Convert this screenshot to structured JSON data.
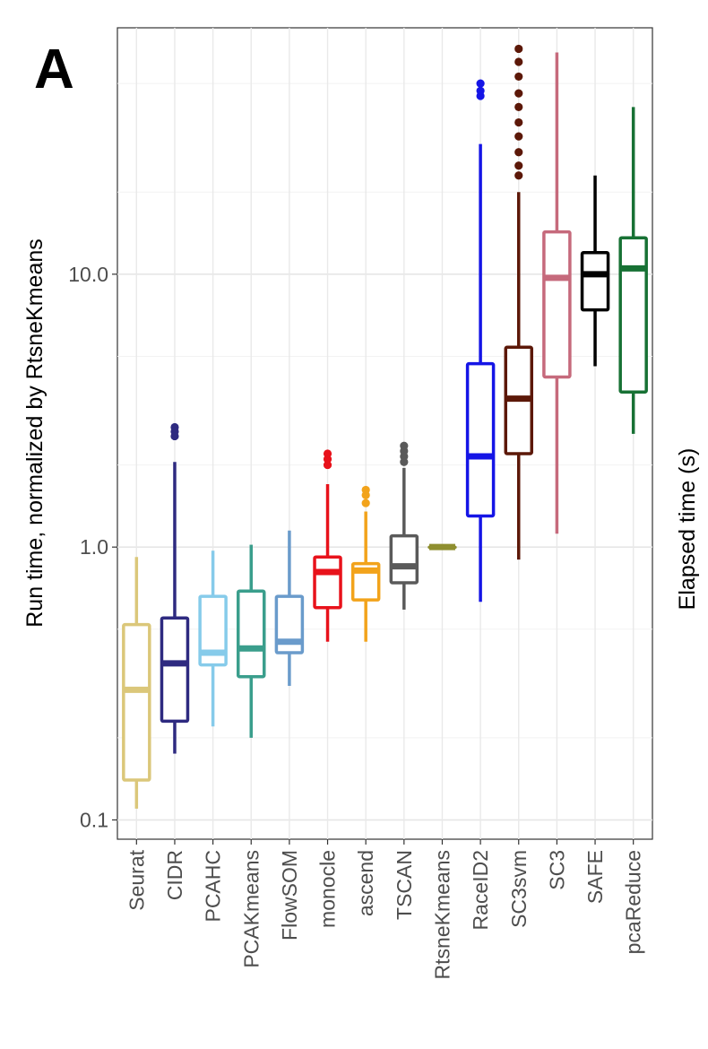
{
  "panel_label": "A",
  "chart_data": {
    "type": "box",
    "title": "",
    "ylabel": "Run time, normalized by RtsneKmeans",
    "ylabel_right": "Elapsed time (s)",
    "xlabel": "",
    "yscale": "log10",
    "ylim": [
      0.085,
      80
    ],
    "yticks": [
      0.1,
      1.0,
      10.0
    ],
    "ytick_labels": [
      "0.1",
      "1.0",
      "10.0"
    ],
    "grid": true,
    "legend": "none",
    "categories": [
      "Seurat",
      "CIDR",
      "PCAHC",
      "PCAKmeans",
      "FlowSOM",
      "monocle",
      "ascend",
      "TSCAN",
      "RtsneKmeans",
      "RaceID2",
      "SC3svm",
      "SC3",
      "SAFE",
      "pcaReduce"
    ],
    "colors": [
      "#dbc77a",
      "#2e2a80",
      "#86cbea",
      "#3a9e8c",
      "#6a9bcb",
      "#e8121b",
      "#f2a31b",
      "#5a5a5a",
      "#8f8f30",
      "#1515e6",
      "#5c1808",
      "#c66a7c",
      "#000000",
      "#177134"
    ],
    "boxes": [
      {
        "min": 0.11,
        "q1": 0.14,
        "median": 0.3,
        "q3": 0.52,
        "max": 0.92,
        "outliers": []
      },
      {
        "min": 0.175,
        "q1": 0.23,
        "median": 0.375,
        "q3": 0.55,
        "max": 2.05,
        "outliers": [
          2.55,
          2.65,
          2.75
        ]
      },
      {
        "min": 0.22,
        "q1": 0.37,
        "median": 0.41,
        "q3": 0.66,
        "max": 0.97,
        "outliers": []
      },
      {
        "min": 0.2,
        "q1": 0.335,
        "median": 0.425,
        "q3": 0.69,
        "max": 1.02,
        "outliers": []
      },
      {
        "min": 0.31,
        "q1": 0.41,
        "median": 0.45,
        "q3": 0.66,
        "max": 1.15,
        "outliers": []
      },
      {
        "min": 0.45,
        "q1": 0.6,
        "median": 0.81,
        "q3": 0.92,
        "max": 1.7,
        "outliers": [
          2.0,
          2.1,
          2.2
        ]
      },
      {
        "min": 0.45,
        "q1": 0.64,
        "median": 0.82,
        "q3": 0.87,
        "max": 1.35,
        "outliers": [
          1.45,
          1.55,
          1.62
        ]
      },
      {
        "min": 0.59,
        "q1": 0.74,
        "median": 0.85,
        "q3": 1.1,
        "max": 1.95,
        "outliers": [
          2.05,
          2.15,
          2.25,
          2.35
        ]
      },
      {
        "min": 1.0,
        "q1": 1.0,
        "median": 1.0,
        "q3": 1.0,
        "max": 1.0,
        "outliers": []
      },
      {
        "min": 0.63,
        "q1": 1.3,
        "median": 2.15,
        "q3": 4.7,
        "max": 30.0,
        "outliers": [
          45.0,
          47.0,
          50.0
        ]
      },
      {
        "min": 0.9,
        "q1": 2.2,
        "median": 3.5,
        "q3": 5.4,
        "max": 20.0,
        "outliers": [
          23.0,
          25.0,
          28.0,
          32.0,
          36.0,
          41.0,
          46.0,
          53.0,
          60.0,
          67.0
        ]
      },
      {
        "min": 1.12,
        "q1": 4.2,
        "median": 9.7,
        "q3": 14.3,
        "max": 65.0,
        "outliers": []
      },
      {
        "min": 4.6,
        "q1": 7.4,
        "median": 10.0,
        "q3": 12.0,
        "max": 23.0,
        "outliers": []
      },
      {
        "min": 2.6,
        "q1": 3.7,
        "median": 10.5,
        "q3": 13.6,
        "max": 41.0,
        "outliers": []
      }
    ]
  }
}
